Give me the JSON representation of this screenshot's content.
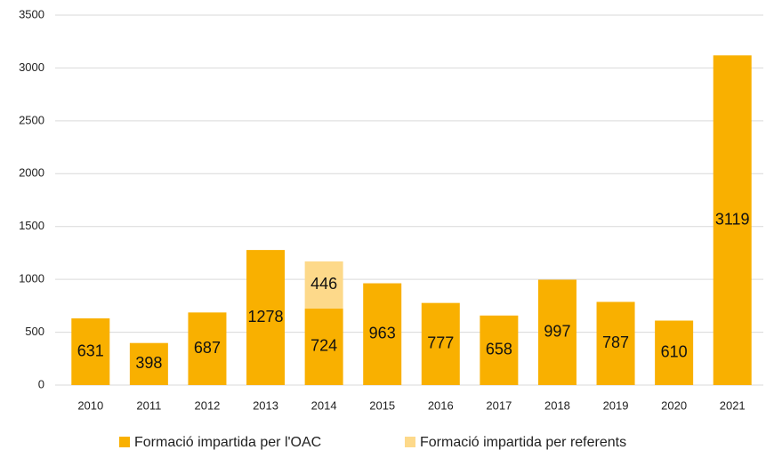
{
  "chart_data": {
    "type": "stacked_bar",
    "categories": [
      "2010",
      "2011",
      "2012",
      "2013",
      "2014",
      "2015",
      "2016",
      "2017",
      "2018",
      "2019",
      "2020",
      "2021"
    ],
    "series": [
      {
        "name": "Formació impartida per l'OAC",
        "color": "#f9b000",
        "values": [
          631,
          398,
          687,
          1278,
          724,
          963,
          777,
          658,
          997,
          787,
          610,
          3119
        ]
      },
      {
        "name": "Formació impartida per referents",
        "color": "#fdd98a",
        "values": [
          null,
          null,
          null,
          null,
          446,
          null,
          null,
          null,
          null,
          null,
          null,
          null
        ]
      }
    ],
    "ylim": [
      0,
      3500
    ],
    "yticks": [
      0,
      500,
      1000,
      1500,
      2000,
      2500,
      3000,
      3500
    ],
    "grid": true,
    "legend": "bottom"
  }
}
